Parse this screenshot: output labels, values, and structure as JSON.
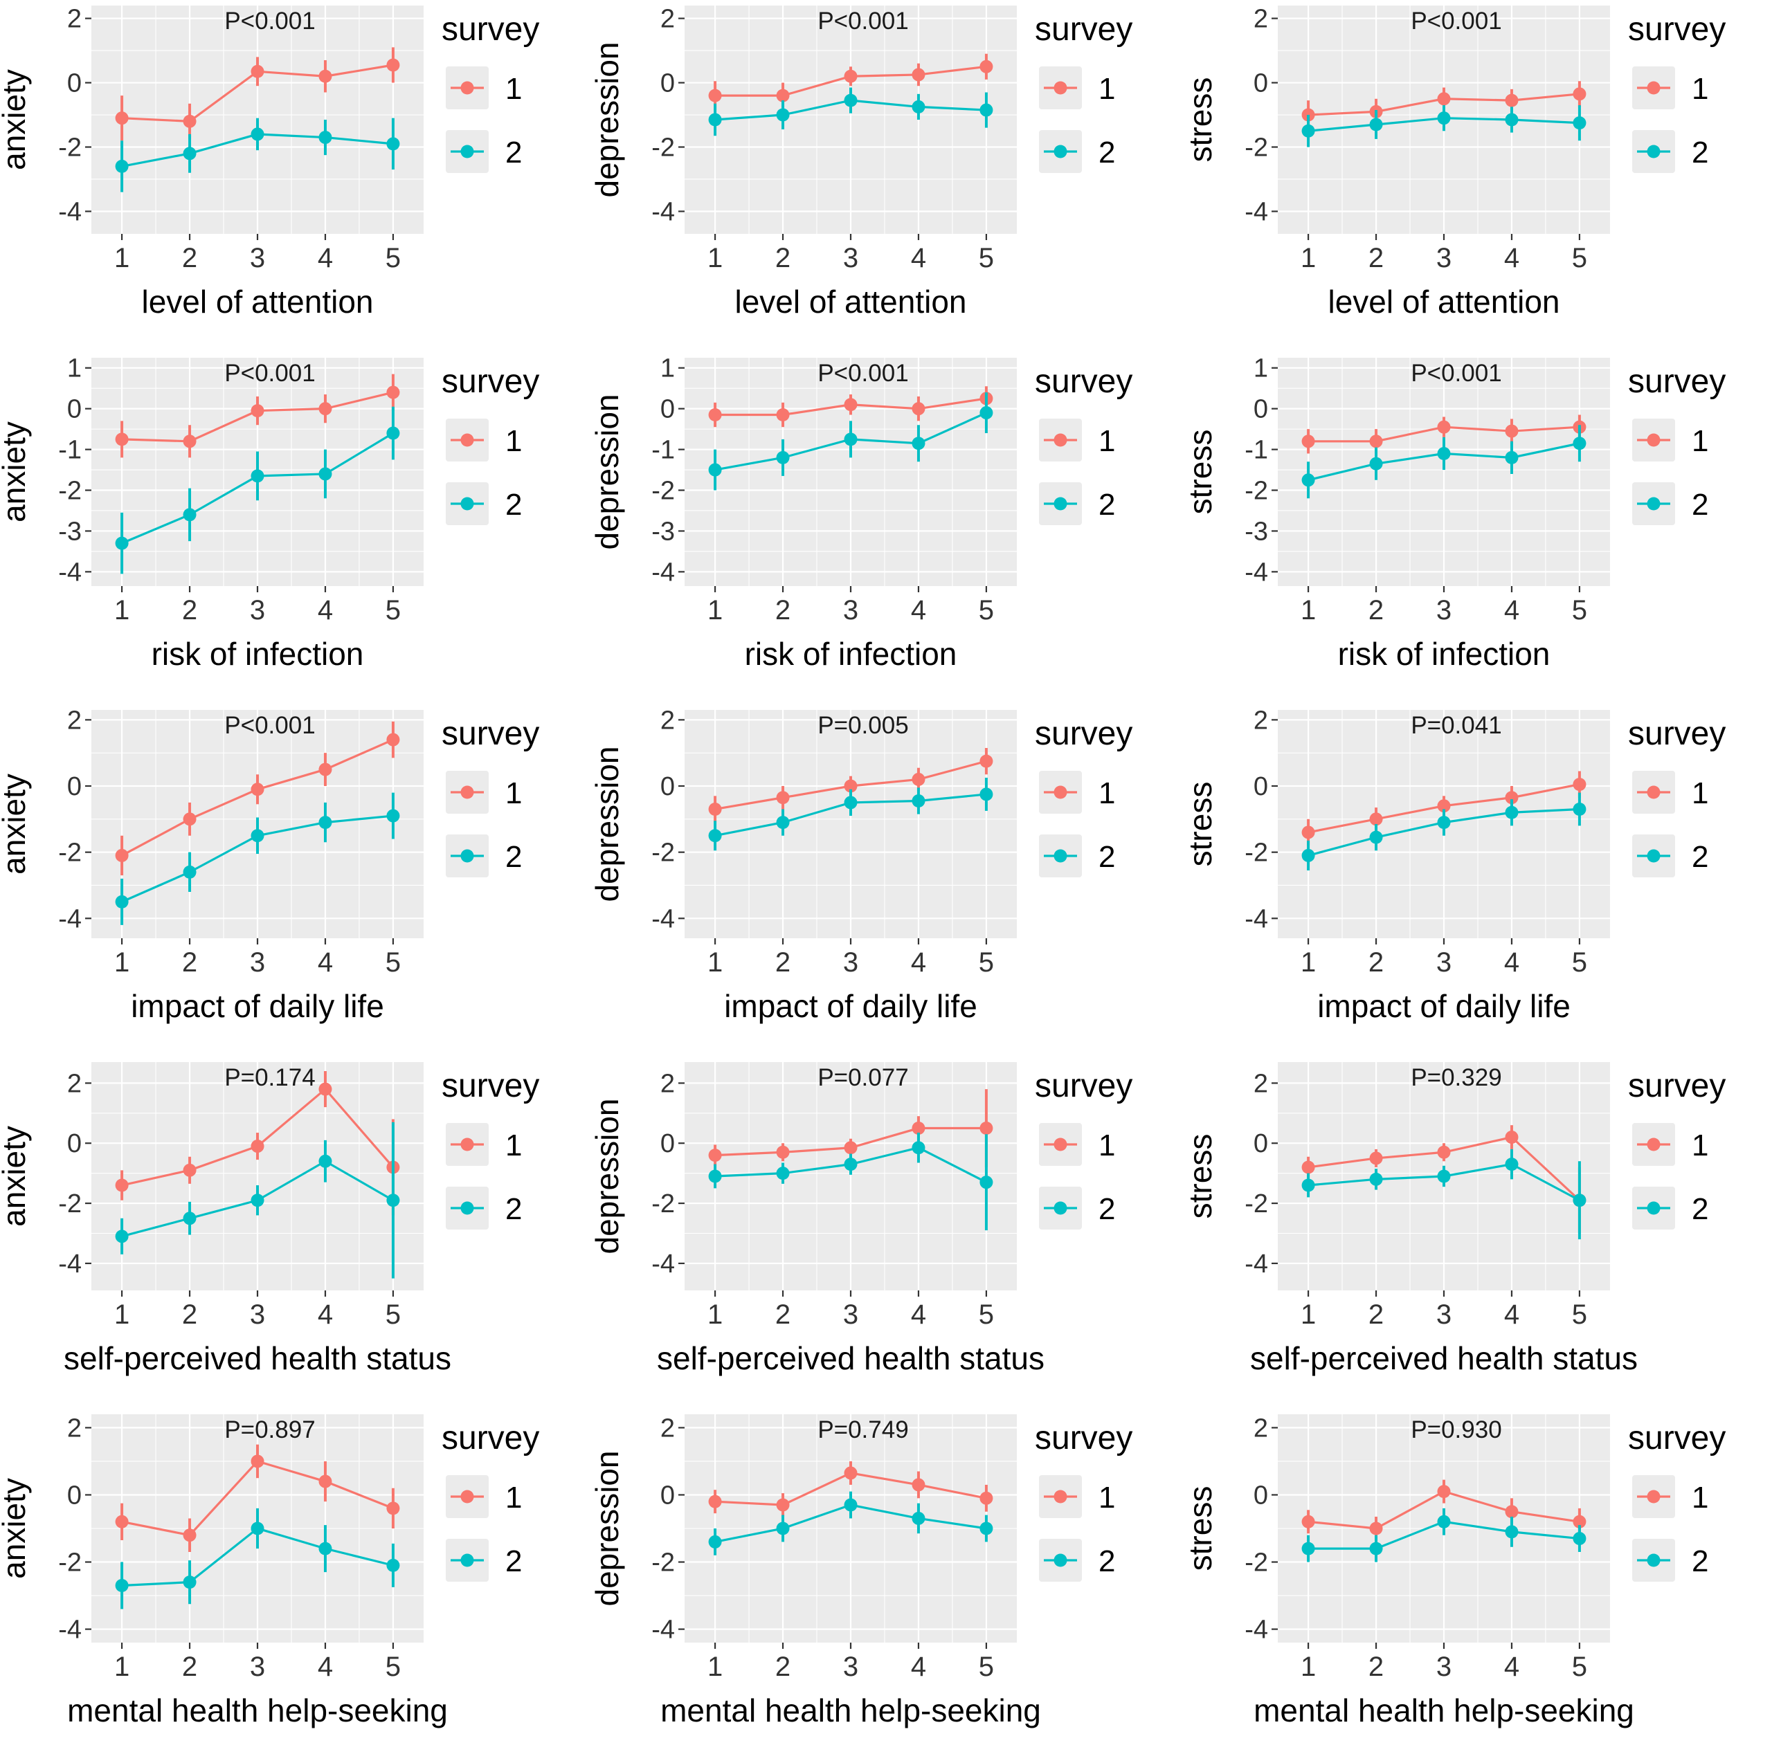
{
  "page": {
    "background": "#ffffff"
  },
  "colors": {
    "survey1": "#F8766D",
    "survey2": "#00BFC4",
    "panel_bg": "#EBEBEB",
    "grid": "#FFFFFF",
    "tick_text": "#333333",
    "title_text": "#000000",
    "legend_key_bg": "#EBEBEB"
  },
  "legend": {
    "title": "survey",
    "items": [
      "1",
      "2"
    ]
  },
  "chart_data": [
    {
      "type": "line",
      "ylabel": "anxiety",
      "xlabel": "level of attention",
      "pvalue": "P<0.001",
      "x": [
        1,
        2,
        3,
        4,
        5
      ],
      "ylim": [
        -4.7,
        2.4
      ],
      "yticks": [
        2,
        0,
        -2,
        -4
      ],
      "series": [
        {
          "name": "1",
          "color": "#F8766D",
          "values": [
            -1.1,
            -1.2,
            0.35,
            0.2,
            0.55
          ],
          "err": [
            0.7,
            0.55,
            0.45,
            0.5,
            0.55
          ]
        },
        {
          "name": "2",
          "color": "#00BFC4",
          "values": [
            -2.6,
            -2.2,
            -1.6,
            -1.7,
            -1.9
          ],
          "err": [
            0.8,
            0.6,
            0.5,
            0.55,
            0.8
          ]
        }
      ]
    },
    {
      "type": "line",
      "ylabel": "depression",
      "xlabel": "level of attention",
      "pvalue": "P<0.001",
      "x": [
        1,
        2,
        3,
        4,
        5
      ],
      "ylim": [
        -4.7,
        2.4
      ],
      "yticks": [
        2,
        0,
        -2,
        -4
      ],
      "series": [
        {
          "name": "1",
          "color": "#F8766D",
          "values": [
            -0.4,
            -0.4,
            0.2,
            0.25,
            0.5
          ],
          "err": [
            0.45,
            0.4,
            0.3,
            0.35,
            0.4
          ]
        },
        {
          "name": "2",
          "color": "#00BFC4",
          "values": [
            -1.15,
            -1.0,
            -0.55,
            -0.75,
            -0.85
          ],
          "err": [
            0.5,
            0.45,
            0.4,
            0.4,
            0.55
          ]
        }
      ]
    },
    {
      "type": "line",
      "ylabel": "stress",
      "xlabel": "level of attention",
      "pvalue": "P<0.001",
      "x": [
        1,
        2,
        3,
        4,
        5
      ],
      "ylim": [
        -4.7,
        2.4
      ],
      "yticks": [
        2,
        0,
        -2,
        -4
      ],
      "series": [
        {
          "name": "1",
          "color": "#F8766D",
          "values": [
            -1.0,
            -0.9,
            -0.5,
            -0.55,
            -0.35
          ],
          "err": [
            0.45,
            0.4,
            0.35,
            0.35,
            0.4
          ]
        },
        {
          "name": "2",
          "color": "#00BFC4",
          "values": [
            -1.5,
            -1.3,
            -1.1,
            -1.15,
            -1.25
          ],
          "err": [
            0.5,
            0.45,
            0.4,
            0.4,
            0.55
          ]
        }
      ]
    },
    {
      "type": "line",
      "ylabel": "anxiety",
      "xlabel": "risk of infection",
      "pvalue": "P<0.001",
      "x": [
        1,
        2,
        3,
        4,
        5
      ],
      "ylim": [
        -4.35,
        1.25
      ],
      "yticks": [
        1,
        0,
        -1,
        -2,
        -3,
        -4
      ],
      "series": [
        {
          "name": "1",
          "color": "#F8766D",
          "values": [
            -0.75,
            -0.8,
            -0.05,
            0.0,
            0.4
          ],
          "err": [
            0.45,
            0.4,
            0.35,
            0.35,
            0.45
          ]
        },
        {
          "name": "2",
          "color": "#00BFC4",
          "values": [
            -3.3,
            -2.6,
            -1.65,
            -1.6,
            -0.6
          ],
          "err": [
            0.75,
            0.65,
            0.6,
            0.6,
            0.65
          ]
        }
      ]
    },
    {
      "type": "line",
      "ylabel": "depression",
      "xlabel": "risk of infection",
      "pvalue": "P<0.001",
      "x": [
        1,
        2,
        3,
        4,
        5
      ],
      "ylim": [
        -4.35,
        1.25
      ],
      "yticks": [
        1,
        0,
        -1,
        -2,
        -3,
        -4
      ],
      "series": [
        {
          "name": "1",
          "color": "#F8766D",
          "values": [
            -0.15,
            -0.15,
            0.1,
            0.0,
            0.25
          ],
          "err": [
            0.3,
            0.3,
            0.25,
            0.3,
            0.3
          ]
        },
        {
          "name": "2",
          "color": "#00BFC4",
          "values": [
            -1.5,
            -1.2,
            -0.75,
            -0.85,
            -0.1
          ],
          "err": [
            0.5,
            0.45,
            0.45,
            0.45,
            0.5
          ]
        }
      ]
    },
    {
      "type": "line",
      "ylabel": "stress",
      "xlabel": "risk of infection",
      "pvalue": "P<0.001",
      "x": [
        1,
        2,
        3,
        4,
        5
      ],
      "ylim": [
        -4.35,
        1.25
      ],
      "yticks": [
        1,
        0,
        -1,
        -2,
        -3,
        -4
      ],
      "series": [
        {
          "name": "1",
          "color": "#F8766D",
          "values": [
            -0.8,
            -0.8,
            -0.45,
            -0.55,
            -0.45
          ],
          "err": [
            0.3,
            0.3,
            0.25,
            0.3,
            0.3
          ]
        },
        {
          "name": "2",
          "color": "#00BFC4",
          "values": [
            -1.75,
            -1.35,
            -1.1,
            -1.2,
            -0.85
          ],
          "err": [
            0.45,
            0.4,
            0.4,
            0.4,
            0.45
          ]
        }
      ]
    },
    {
      "type": "line",
      "ylabel": "anxiety",
      "xlabel": "impact of daily life",
      "pvalue": "P<0.001",
      "x": [
        1,
        2,
        3,
        4,
        5
      ],
      "ylim": [
        -4.6,
        2.3
      ],
      "yticks": [
        2,
        0,
        -2,
        -4
      ],
      "series": [
        {
          "name": "1",
          "color": "#F8766D",
          "values": [
            -2.1,
            -1.0,
            -0.1,
            0.5,
            1.4
          ],
          "err": [
            0.6,
            0.5,
            0.45,
            0.5,
            0.55
          ]
        },
        {
          "name": "2",
          "color": "#00BFC4",
          "values": [
            -3.5,
            -2.6,
            -1.5,
            -1.1,
            -0.9
          ],
          "err": [
            0.7,
            0.6,
            0.55,
            0.6,
            0.7
          ]
        }
      ]
    },
    {
      "type": "line",
      "ylabel": "depression",
      "xlabel": "impact of daily life",
      "pvalue": "P=0.005",
      "x": [
        1,
        2,
        3,
        4,
        5
      ],
      "ylim": [
        -4.6,
        2.3
      ],
      "yticks": [
        2,
        0,
        -2,
        -4
      ],
      "series": [
        {
          "name": "1",
          "color": "#F8766D",
          "values": [
            -0.7,
            -0.35,
            0.0,
            0.2,
            0.75
          ],
          "err": [
            0.4,
            0.35,
            0.3,
            0.35,
            0.4
          ]
        },
        {
          "name": "2",
          "color": "#00BFC4",
          "values": [
            -1.5,
            -1.1,
            -0.5,
            -0.45,
            -0.25
          ],
          "err": [
            0.45,
            0.4,
            0.4,
            0.4,
            0.5
          ]
        }
      ]
    },
    {
      "type": "line",
      "ylabel": "stress",
      "xlabel": "impact of daily life",
      "pvalue": "P=0.041",
      "x": [
        1,
        2,
        3,
        4,
        5
      ],
      "ylim": [
        -4.6,
        2.3
      ],
      "yticks": [
        2,
        0,
        -2,
        -4
      ],
      "series": [
        {
          "name": "1",
          "color": "#F8766D",
          "values": [
            -1.4,
            -1.0,
            -0.6,
            -0.35,
            0.05
          ],
          "err": [
            0.4,
            0.35,
            0.3,
            0.35,
            0.4
          ]
        },
        {
          "name": "2",
          "color": "#00BFC4",
          "values": [
            -2.1,
            -1.55,
            -1.1,
            -0.8,
            -0.7
          ],
          "err": [
            0.45,
            0.4,
            0.4,
            0.4,
            0.5
          ]
        }
      ]
    },
    {
      "type": "line",
      "ylabel": "anxiety",
      "xlabel": "self-perceived health status",
      "pvalue": "P=0.174",
      "x": [
        1,
        2,
        3,
        4,
        5
      ],
      "ylim": [
        -4.9,
        2.7
      ],
      "yticks": [
        2,
        0,
        -2,
        -4
      ],
      "series": [
        {
          "name": "1",
          "color": "#F8766D",
          "values": [
            -1.4,
            -0.9,
            -0.1,
            1.8,
            -0.8
          ],
          "err": [
            0.5,
            0.45,
            0.45,
            0.6,
            1.6
          ]
        },
        {
          "name": "2",
          "color": "#00BFC4",
          "values": [
            -3.1,
            -2.5,
            -1.9,
            -0.6,
            -1.9
          ],
          "err": [
            0.6,
            0.55,
            0.5,
            0.7,
            2.6
          ]
        }
      ]
    },
    {
      "type": "line",
      "ylabel": "depression",
      "xlabel": "self-perceived health status",
      "pvalue": "P=0.077",
      "x": [
        1,
        2,
        3,
        4,
        5
      ],
      "ylim": [
        -4.9,
        2.7
      ],
      "yticks": [
        2,
        0,
        -2,
        -4
      ],
      "series": [
        {
          "name": "1",
          "color": "#F8766D",
          "values": [
            -0.4,
            -0.3,
            -0.15,
            0.5,
            0.5
          ],
          "err": [
            0.35,
            0.3,
            0.3,
            0.4,
            1.3
          ]
        },
        {
          "name": "2",
          "color": "#00BFC4",
          "values": [
            -1.1,
            -1.0,
            -0.7,
            -0.15,
            -1.3
          ],
          "err": [
            0.4,
            0.35,
            0.35,
            0.5,
            1.6
          ]
        }
      ]
    },
    {
      "type": "line",
      "ylabel": "stress",
      "xlabel": "self-perceived health status",
      "pvalue": "P=0.329",
      "x": [
        1,
        2,
        3,
        4,
        5
      ],
      "ylim": [
        -4.9,
        2.7
      ],
      "yticks": [
        2,
        0,
        -2,
        -4
      ],
      "series": [
        {
          "name": "1",
          "color": "#F8766D",
          "values": [
            -0.8,
            -0.5,
            -0.3,
            0.2,
            -1.9
          ],
          "err": [
            0.35,
            0.3,
            0.3,
            0.4,
            1.1
          ]
        },
        {
          "name": "2",
          "color": "#00BFC4",
          "values": [
            -1.4,
            -1.2,
            -1.1,
            -0.7,
            -1.9
          ],
          "err": [
            0.4,
            0.35,
            0.35,
            0.5,
            1.3
          ]
        }
      ]
    },
    {
      "type": "line",
      "ylabel": "anxiety",
      "xlabel": "mental health help-seeking",
      "pvalue": "P=0.897",
      "x": [
        1,
        2,
        3,
        4,
        5
      ],
      "ylim": [
        -4.4,
        2.4
      ],
      "yticks": [
        2,
        0,
        -2,
        -4
      ],
      "series": [
        {
          "name": "1",
          "color": "#F8766D",
          "values": [
            -0.8,
            -1.2,
            1.0,
            0.4,
            -0.4
          ],
          "err": [
            0.55,
            0.5,
            0.5,
            0.6,
            0.6
          ]
        },
        {
          "name": "2",
          "color": "#00BFC4",
          "values": [
            -2.7,
            -2.6,
            -1.0,
            -1.6,
            -2.1
          ],
          "err": [
            0.7,
            0.65,
            0.6,
            0.7,
            0.65
          ]
        }
      ]
    },
    {
      "type": "line",
      "ylabel": "depression",
      "xlabel": "mental health help-seeking",
      "pvalue": "P=0.749",
      "x": [
        1,
        2,
        3,
        4,
        5
      ],
      "ylim": [
        -4.4,
        2.4
      ],
      "yticks": [
        2,
        0,
        -2,
        -4
      ],
      "series": [
        {
          "name": "1",
          "color": "#F8766D",
          "values": [
            -0.2,
            -0.3,
            0.65,
            0.3,
            -0.1
          ],
          "err": [
            0.35,
            0.35,
            0.35,
            0.4,
            0.4
          ]
        },
        {
          "name": "2",
          "color": "#00BFC4",
          "values": [
            -1.4,
            -1.0,
            -0.3,
            -0.7,
            -1.0
          ],
          "err": [
            0.4,
            0.4,
            0.4,
            0.45,
            0.4
          ]
        }
      ]
    },
    {
      "type": "line",
      "ylabel": "stress",
      "xlabel": "mental health help-seeking",
      "pvalue": "P=0.930",
      "x": [
        1,
        2,
        3,
        4,
        5
      ],
      "ylim": [
        -4.4,
        2.4
      ],
      "yticks": [
        2,
        0,
        -2,
        -4
      ],
      "series": [
        {
          "name": "1",
          "color": "#F8766D",
          "values": [
            -0.8,
            -1.0,
            0.1,
            -0.5,
            -0.8
          ],
          "err": [
            0.35,
            0.35,
            0.35,
            0.4,
            0.4
          ]
        },
        {
          "name": "2",
          "color": "#00BFC4",
          "values": [
            -1.6,
            -1.6,
            -0.8,
            -1.1,
            -1.3
          ],
          "err": [
            0.4,
            0.4,
            0.4,
            0.45,
            0.4
          ]
        }
      ]
    }
  ]
}
